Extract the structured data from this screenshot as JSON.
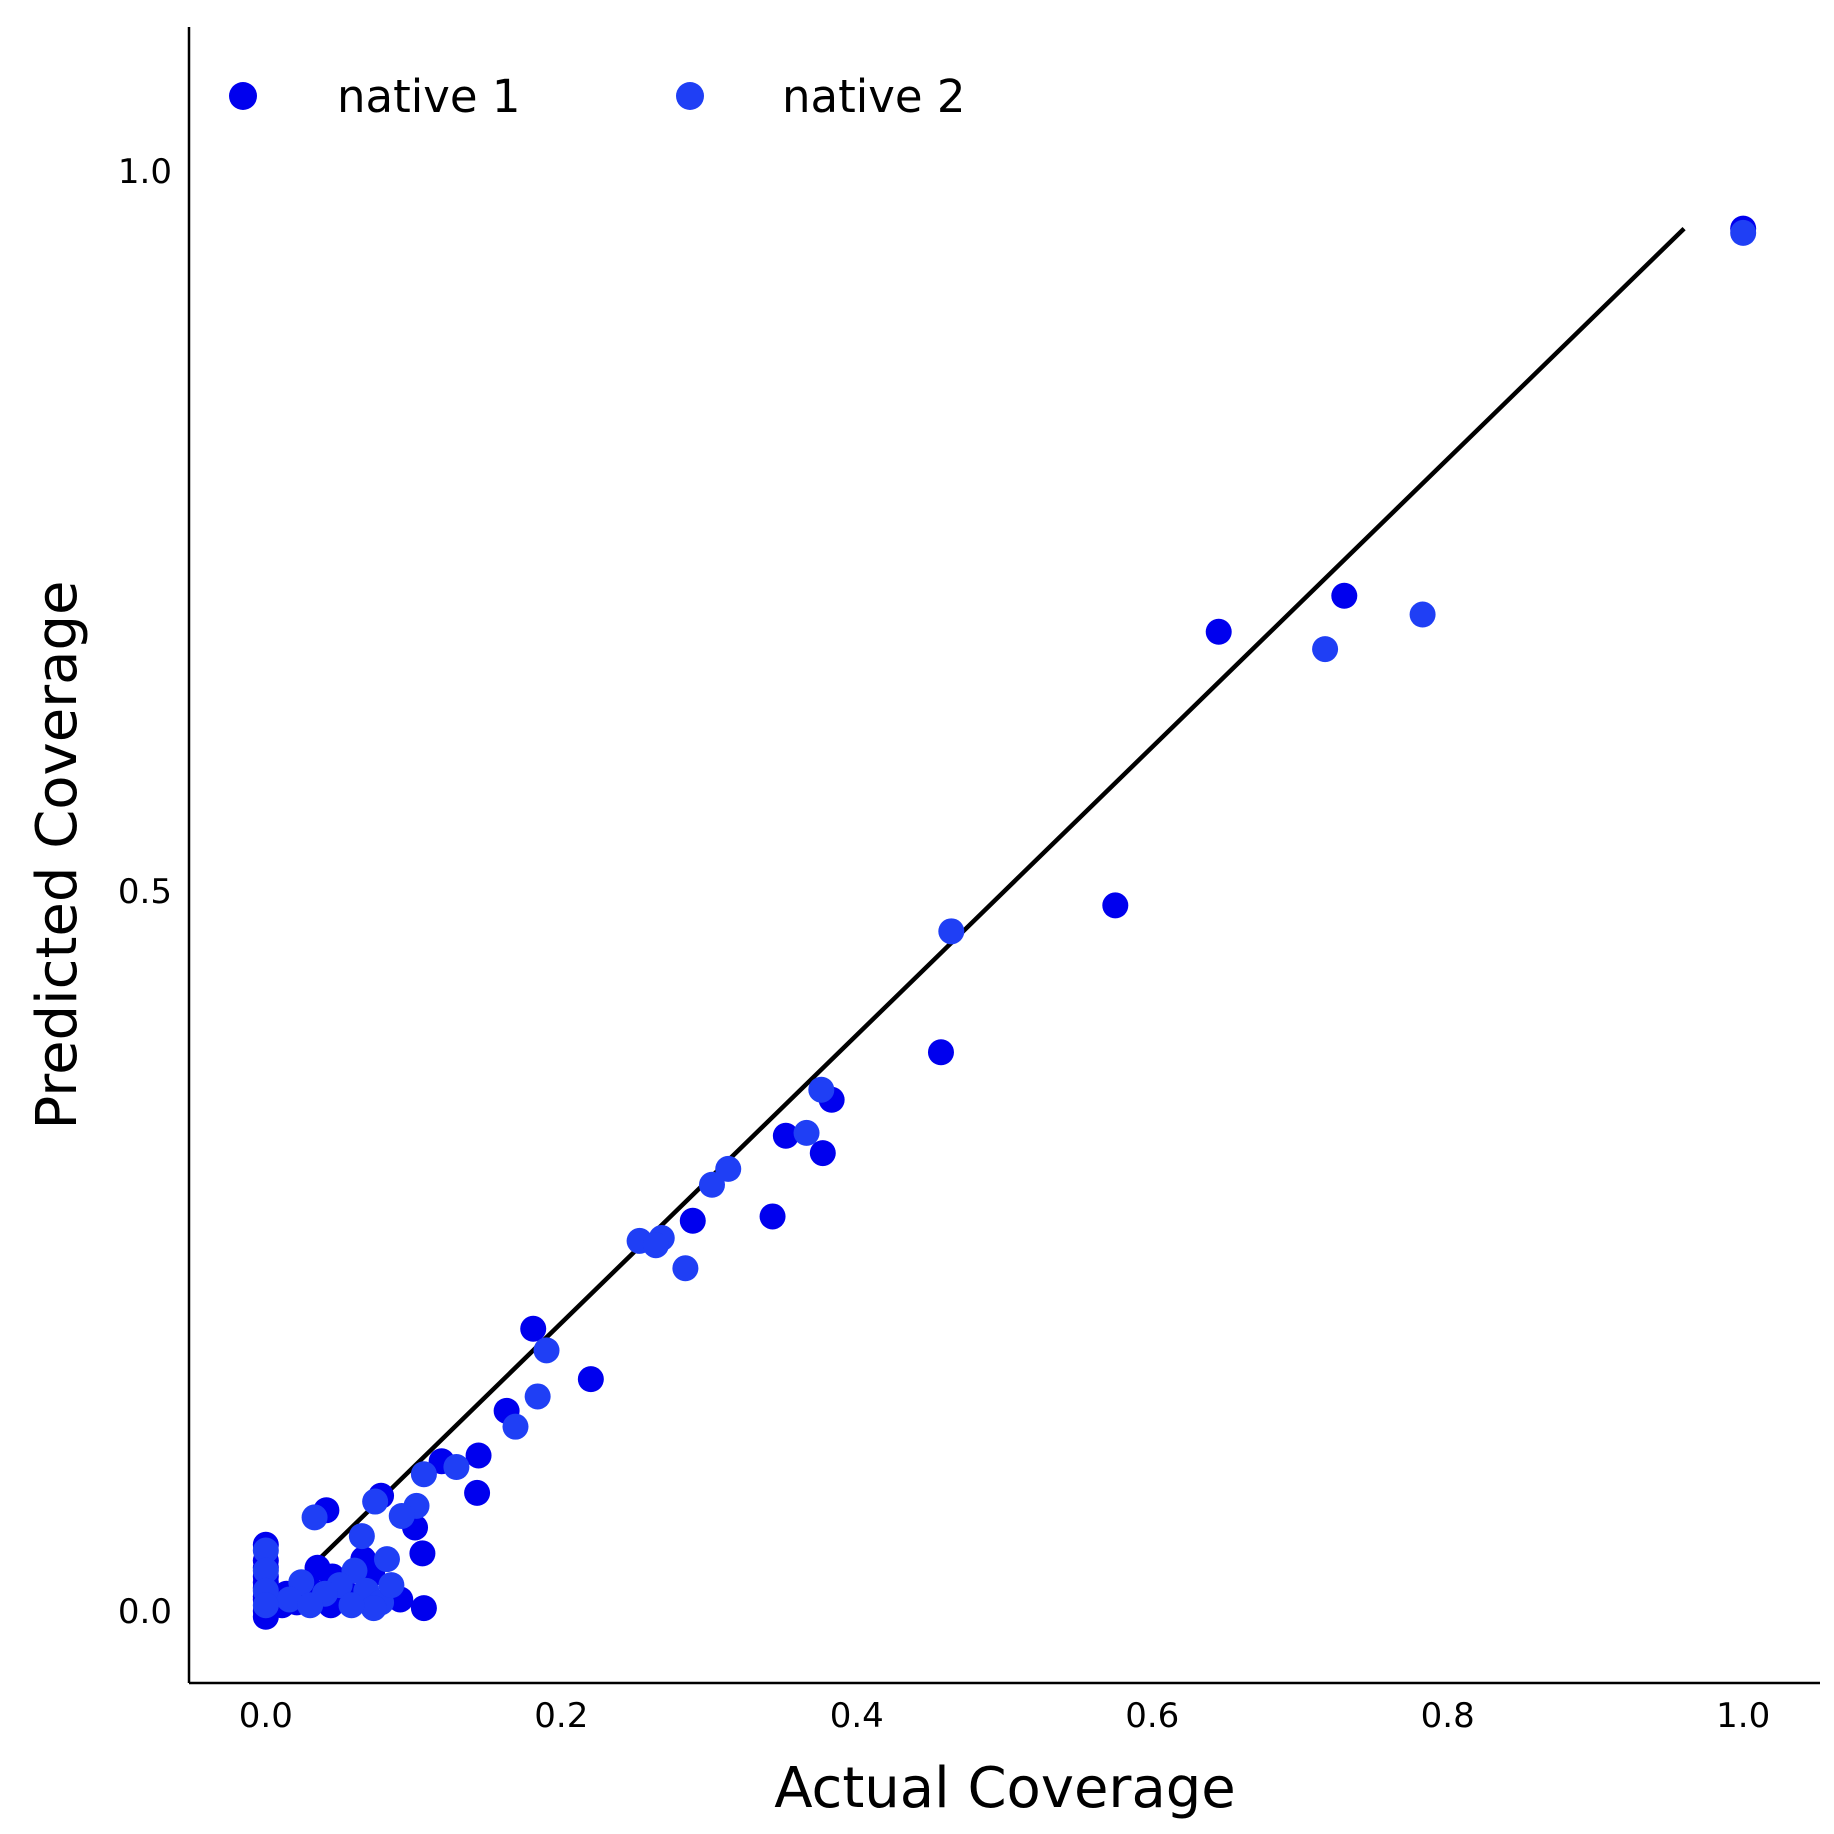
{
  "chart_data": {
    "type": "scatter",
    "xlabel": "Actual Coverage",
    "ylabel": "Predicted Coverage",
    "xlim": [
      -0.052,
      1.052
    ],
    "ylim": [
      -0.05,
      1.1
    ],
    "xticks": [
      0.0,
      0.2,
      0.4,
      0.6,
      0.8,
      1.0
    ],
    "xtick_labels": [
      "0.0",
      "0.2",
      "0.4",
      "0.6",
      "0.8",
      "1.0"
    ],
    "yticks": [
      0.0,
      0.5,
      1.0
    ],
    "ytick_labels": [
      "0.0",
      "0.5",
      "1.0"
    ],
    "grid": false,
    "legend_position": "top-left",
    "reference_line": {
      "from": [
        0.0,
        0.0
      ],
      "to": [
        0.96,
        0.96
      ],
      "color": "#000000"
    },
    "series": [
      {
        "name": "native 1",
        "color": "#0000ee",
        "points": [
          [
            1.0,
            0.96
          ],
          [
            0.73,
            0.705
          ],
          [
            0.645,
            0.68
          ],
          [
            0.575,
            0.49
          ],
          [
            0.457,
            0.388
          ],
          [
            0.383,
            0.355
          ],
          [
            0.377,
            0.318
          ],
          [
            0.352,
            0.33
          ],
          [
            0.343,
            0.274
          ],
          [
            0.289,
            0.271
          ],
          [
            0.22,
            0.161
          ],
          [
            0.181,
            0.196
          ],
          [
            0.163,
            0.139
          ],
          [
            0.144,
            0.108
          ],
          [
            0.143,
            0.082
          ],
          [
            0.119,
            0.104
          ],
          [
            0.106,
            0.04
          ],
          [
            0.101,
            0.058
          ],
          [
            0.107,
            0.002
          ],
          [
            0.078,
            0.08
          ],
          [
            0.091,
            0.008
          ],
          [
            0.072,
            0.026
          ],
          [
            0.066,
            0.036
          ],
          [
            0.041,
            0.07
          ],
          [
            0.045,
            0.024
          ],
          [
            0.044,
            0.004
          ],
          [
            0.056,
            0.011
          ],
          [
            0.035,
            0.03
          ],
          [
            0.031,
            0.014
          ],
          [
            0.021,
            0.006
          ],
          [
            0.014,
            0.012
          ],
          [
            0.011,
            0.004
          ],
          [
            0.0,
            0.046
          ],
          [
            0.0,
            0.035
          ],
          [
            0.0,
            0.024
          ],
          [
            0.0,
            0.016
          ],
          [
            0.0,
            0.008
          ],
          [
            0.0,
            0.0
          ],
          [
            0.0,
            -0.004
          ],
          [
            0.0,
            0.03
          ],
          [
            0.0,
            0.02
          ],
          [
            0.0,
            0.01
          ],
          [
            0.006,
            0.004
          ]
        ]
      },
      {
        "name": "native 2",
        "color": "#1f3ff5",
        "points": [
          [
            1.0,
            0.957
          ],
          [
            0.783,
            0.692
          ],
          [
            0.717,
            0.668
          ],
          [
            0.464,
            0.472
          ],
          [
            0.376,
            0.362
          ],
          [
            0.366,
            0.332
          ],
          [
            0.313,
            0.307
          ],
          [
            0.302,
            0.296
          ],
          [
            0.284,
            0.238
          ],
          [
            0.268,
            0.259
          ],
          [
            0.253,
            0.257
          ],
          [
            0.264,
            0.254
          ],
          [
            0.19,
            0.181
          ],
          [
            0.184,
            0.149
          ],
          [
            0.169,
            0.128
          ],
          [
            0.129,
            0.1
          ],
          [
            0.107,
            0.095
          ],
          [
            0.102,
            0.073
          ],
          [
            0.092,
            0.066
          ],
          [
            0.074,
            0.076
          ],
          [
            0.033,
            0.065
          ],
          [
            0.065,
            0.052
          ],
          [
            0.082,
            0.036
          ],
          [
            0.06,
            0.028
          ],
          [
            0.068,
            0.014
          ],
          [
            0.078,
            0.006
          ],
          [
            0.085,
            0.018
          ],
          [
            0.05,
            0.018
          ],
          [
            0.04,
            0.012
          ],
          [
            0.024,
            0.02
          ],
          [
            0.016,
            0.008
          ],
          [
            0.073,
            0.002
          ],
          [
            0.058,
            0.004
          ],
          [
            0.03,
            0.004
          ],
          [
            0.0,
            0.042
          ],
          [
            0.0,
            0.028
          ],
          [
            0.0,
            0.014
          ],
          [
            0.0,
            0.004
          ]
        ]
      }
    ]
  }
}
